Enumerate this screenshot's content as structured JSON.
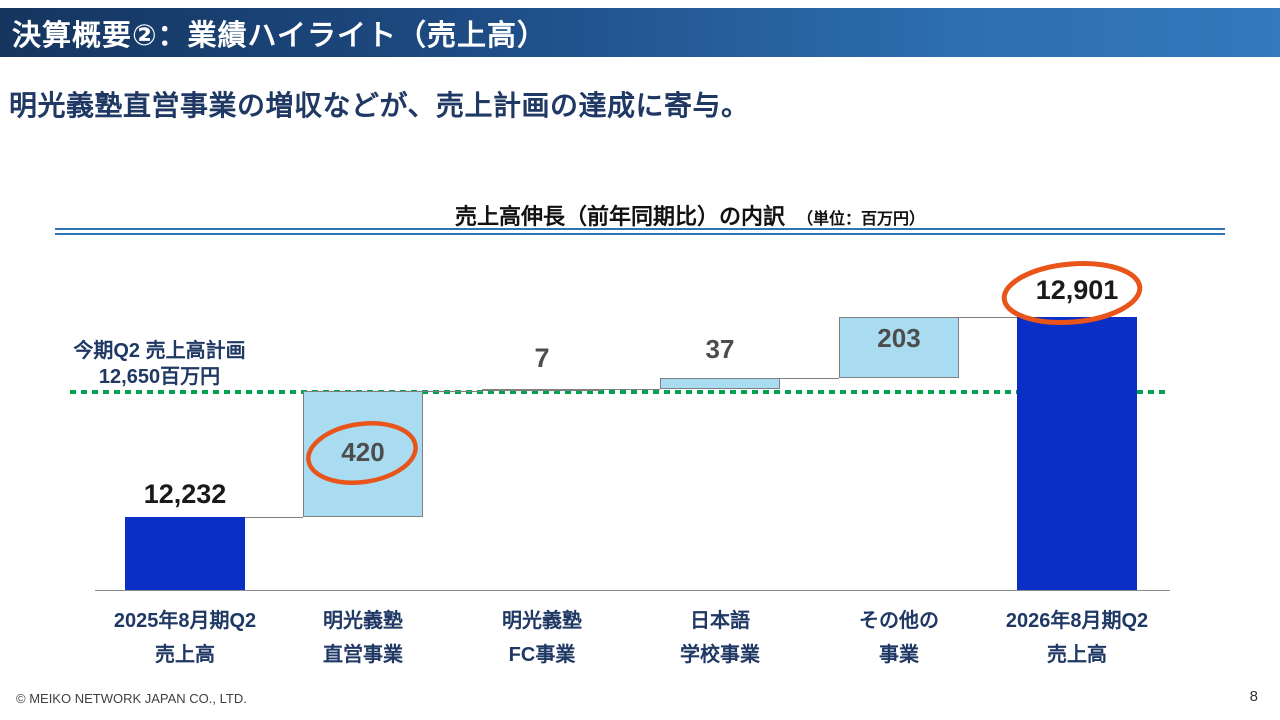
{
  "header": {
    "title": "決算概要②：業績ハイライト（売上高）"
  },
  "subtitle": "明光義塾直営事業の増収などが、売上計画の達成に寄与。",
  "chart": {
    "title": "売上高伸長（前年同期比）の内訳",
    "unit_note": "（単位：百万円）",
    "plan_label_line1": "今期Q2 売上高計画",
    "plan_label_line2": "12,650百万円"
  },
  "chart_data": {
    "type": "waterfall",
    "title": "売上高伸長（前年同期比）の内訳",
    "unit": "百万円",
    "categories": [
      {
        "line1": "2025年8月期Q2",
        "line2": "売上高"
      },
      {
        "line1": "明光義塾",
        "line2": "直営事業"
      },
      {
        "line1": "明光義塾",
        "line2": "FC事業"
      },
      {
        "line1": "日本語",
        "line2": "学校事業"
      },
      {
        "line1": "その他の",
        "line2": "事業"
      },
      {
        "line1": "2026年8月期Q2",
        "line2": "売上高"
      }
    ],
    "values": [
      12232,
      420,
      7,
      37,
      203,
      12901
    ],
    "bar_roles": [
      "total",
      "delta",
      "delta",
      "delta",
      "delta",
      "total"
    ],
    "value_labels": [
      "12,232",
      "420",
      "7",
      "37",
      "203",
      "12,901"
    ],
    "reference_line": {
      "label": "今期Q2 売上高計画 12,650百万円",
      "value": 12650
    },
    "annotations": [
      {
        "type": "hand-drawn-circle",
        "target_label": "420"
      },
      {
        "type": "hand-drawn-circle",
        "target_label": "12,901"
      }
    ],
    "y_axis": {
      "visible": false,
      "truncated": true
    },
    "colors": {
      "total_bar": "#0a2fc7",
      "delta_bar": "#a9dcf1",
      "annotation": "#e8541a",
      "reference_line": "#00a14f",
      "total_label": "#1a1a1a",
      "delta_label": "#4d4d4d"
    }
  },
  "footer": {
    "copyright": "© MEIKO NETWORK JAPAN CO., LTD.",
    "page_number": "8"
  }
}
